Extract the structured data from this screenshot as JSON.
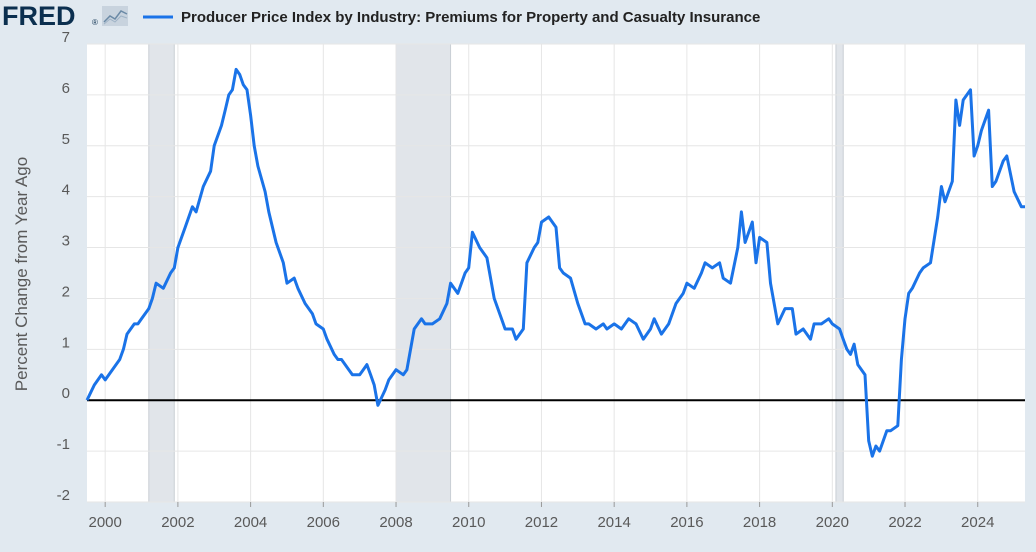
{
  "header": {
    "logo_text": "FRED",
    "logo_mark": "®",
    "series_title": "Producer Price Index by Industry: Premiums for Property and Casualty Insurance"
  },
  "colors": {
    "background": "#e1e9f0",
    "plot_background": "#ffffff",
    "series_line": "#1a73e8",
    "zero_line": "#000000",
    "recession_shade": "#e1e5ea",
    "grid": "#e6e6e6",
    "logo": "#0b2f4f"
  },
  "chart_data": {
    "type": "line",
    "title": "Producer Price Index by Industry: Premiums for Property and Casualty Insurance",
    "xlabel": "",
    "ylabel": "Percent Change from Year Ago",
    "ylim": [
      -2,
      7
    ],
    "xlim": [
      1999.5,
      2025.3
    ],
    "yticks": [
      "-2",
      "-1",
      "0",
      "1",
      "2",
      "3",
      "4",
      "5",
      "6",
      "7"
    ],
    "xticks": [
      "2000",
      "2002",
      "2004",
      "2006",
      "2008",
      "2010",
      "2012",
      "2014",
      "2016",
      "2018",
      "2020",
      "2022",
      "2024"
    ],
    "grid": true,
    "legend": "top-left",
    "recessions": [
      [
        2001.2,
        2001.9
      ],
      [
        2008.0,
        2009.5
      ],
      [
        2020.1,
        2020.3
      ]
    ],
    "series": [
      {
        "name": "Producer Price Index by Industry: Premiums for Property and Casualty Insurance",
        "x": [
          1999.5,
          1999.7,
          1999.9,
          2000.0,
          2000.2,
          2000.4,
          2000.5,
          2000.6,
          2000.8,
          2000.9,
          2001.0,
          2001.2,
          2001.3,
          2001.4,
          2001.6,
          2001.8,
          2001.9,
          2002.0,
          2002.2,
          2002.4,
          2002.5,
          2002.7,
          2002.9,
          2003.0,
          2003.2,
          2003.3,
          2003.4,
          2003.5,
          2003.6,
          2003.7,
          2003.8,
          2003.9,
          2004.0,
          2004.1,
          2004.2,
          2004.4,
          2004.5,
          2004.7,
          2004.8,
          2004.9,
          2005.0,
          2005.2,
          2005.3,
          2005.5,
          2005.7,
          2005.8,
          2006.0,
          2006.1,
          2006.3,
          2006.4,
          2006.5,
          2006.7,
          2006.8,
          2007.0,
          2007.1,
          2007.2,
          2007.3,
          2007.4,
          2007.5,
          2007.7,
          2007.8,
          2008.0,
          2008.2,
          2008.3,
          2008.5,
          2008.7,
          2008.8,
          2009.0,
          2009.2,
          2009.4,
          2009.5,
          2009.7,
          2009.9,
          2010.0,
          2010.1,
          2010.3,
          2010.5,
          2010.7,
          2010.9,
          2011.0,
          2011.2,
          2011.3,
          2011.5,
          2011.6,
          2011.8,
          2011.9,
          2012.0,
          2012.2,
          2012.4,
          2012.5,
          2012.6,
          2012.8,
          2013.0,
          2013.2,
          2013.3,
          2013.5,
          2013.7,
          2013.8,
          2014.0,
          2014.2,
          2014.4,
          2014.6,
          2014.8,
          2015.0,
          2015.1,
          2015.3,
          2015.5,
          2015.7,
          2015.9,
          2016.0,
          2016.2,
          2016.4,
          2016.5,
          2016.7,
          2016.9,
          2017.0,
          2017.2,
          2017.4,
          2017.5,
          2017.6,
          2017.8,
          2017.9,
          2018.0,
          2018.2,
          2018.3,
          2018.5,
          2018.7,
          2018.9,
          2019.0,
          2019.2,
          2019.4,
          2019.5,
          2019.7,
          2019.9,
          2020.0,
          2020.2,
          2020.3,
          2020.4,
          2020.5,
          2020.6,
          2020.7,
          2020.9,
          2021.0,
          2021.1,
          2021.2,
          2021.3,
          2021.5,
          2021.6,
          2021.8,
          2021.9,
          2022.0,
          2022.1,
          2022.2,
          2022.4,
          2022.5,
          2022.7,
          2022.9,
          2023.0,
          2023.1,
          2023.3,
          2023.4,
          2023.5,
          2023.6,
          2023.8,
          2023.9,
          2024.0,
          2024.1,
          2024.3,
          2024.4,
          2024.5,
          2024.7,
          2024.8,
          2025.0,
          2025.2,
          2025.3
        ],
        "values": [
          0.0,
          0.3,
          0.5,
          0.4,
          0.6,
          0.8,
          1.0,
          1.3,
          1.5,
          1.5,
          1.6,
          1.8,
          2.0,
          2.3,
          2.2,
          2.5,
          2.6,
          3.0,
          3.4,
          3.8,
          3.7,
          4.2,
          4.5,
          5.0,
          5.4,
          5.7,
          6.0,
          6.1,
          6.5,
          6.4,
          6.2,
          6.1,
          5.6,
          5.0,
          4.6,
          4.1,
          3.7,
          3.1,
          2.9,
          2.7,
          2.3,
          2.4,
          2.2,
          1.9,
          1.7,
          1.5,
          1.4,
          1.2,
          0.9,
          0.8,
          0.8,
          0.6,
          0.5,
          0.5,
          0.6,
          0.7,
          0.5,
          0.3,
          -0.1,
          0.2,
          0.4,
          0.6,
          0.5,
          0.6,
          1.4,
          1.6,
          1.5,
          1.5,
          1.6,
          1.9,
          2.3,
          2.1,
          2.5,
          2.6,
          3.3,
          3.0,
          2.8,
          2.0,
          1.6,
          1.4,
          1.4,
          1.2,
          1.4,
          2.7,
          3.0,
          3.1,
          3.5,
          3.6,
          3.4,
          2.6,
          2.5,
          2.4,
          1.9,
          1.5,
          1.5,
          1.4,
          1.5,
          1.4,
          1.5,
          1.4,
          1.6,
          1.5,
          1.2,
          1.4,
          1.6,
          1.3,
          1.5,
          1.9,
          2.1,
          2.3,
          2.2,
          2.5,
          2.7,
          2.6,
          2.7,
          2.4,
          2.3,
          3.0,
          3.7,
          3.1,
          3.5,
          2.7,
          3.2,
          3.1,
          2.3,
          1.5,
          1.8,
          1.8,
          1.3,
          1.4,
          1.2,
          1.5,
          1.5,
          1.6,
          1.5,
          1.4,
          1.2,
          1.0,
          0.9,
          1.1,
          0.7,
          0.5,
          -0.8,
          -1.1,
          -0.9,
          -1.0,
          -0.6,
          -0.6,
          -0.5,
          0.8,
          1.6,
          2.1,
          2.2,
          2.5,
          2.6,
          2.7,
          3.6,
          4.2,
          3.9,
          4.3,
          5.9,
          5.4,
          5.9,
          6.1,
          4.8,
          5.0,
          5.3,
          5.7,
          4.2,
          4.3,
          4.7,
          4.8,
          4.1,
          3.8,
          3.8
        ]
      }
    ]
  }
}
